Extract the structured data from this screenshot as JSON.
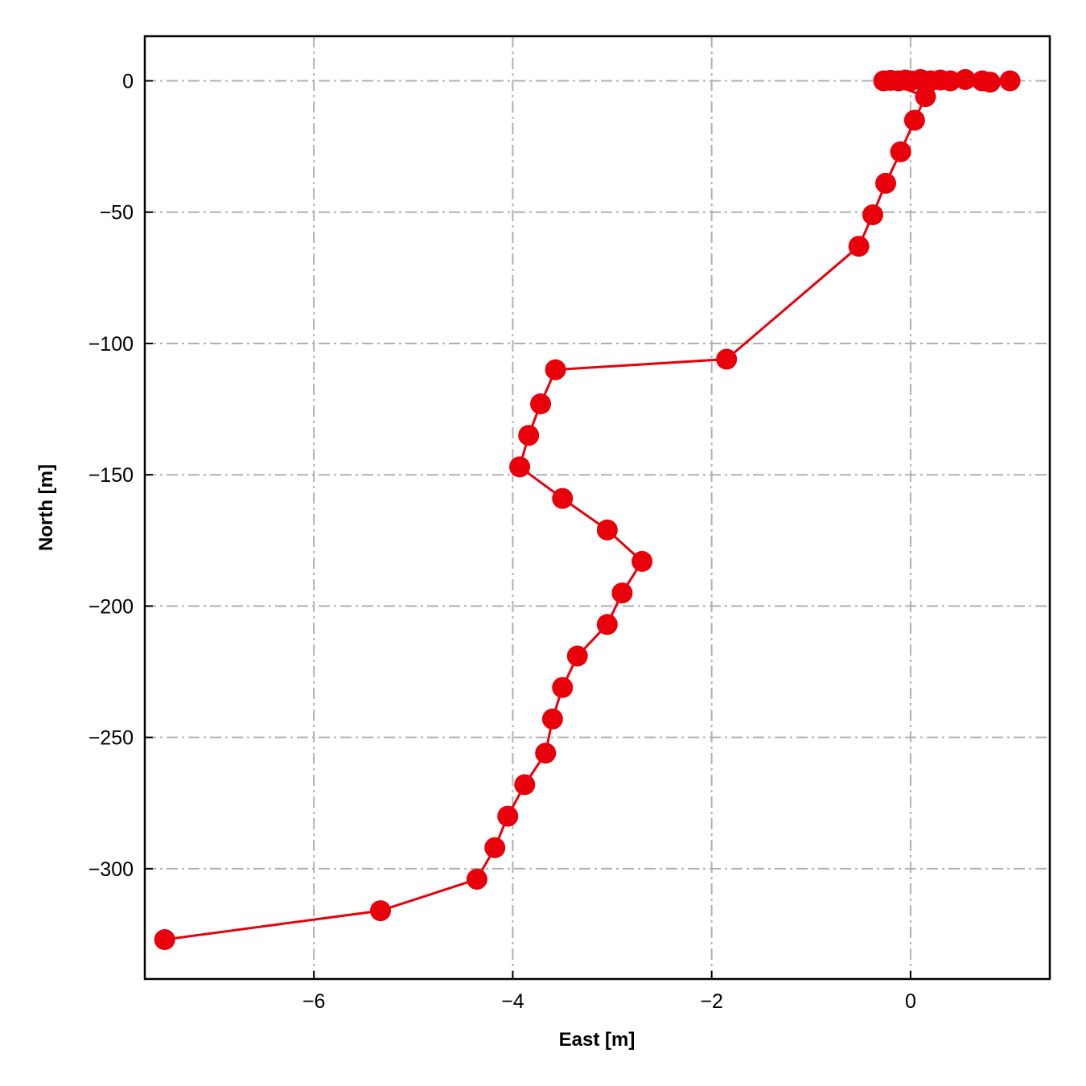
{
  "chart_data": {
    "type": "line",
    "xlabel": "East [m]",
    "ylabel": "North [m]",
    "xlim": [
      -7.7,
      1.4
    ],
    "ylim": [
      -342,
      17
    ],
    "xticks": [
      -6,
      -4,
      -2,
      0
    ],
    "yticks": [
      0,
      -50,
      -100,
      -150,
      -200,
      -250,
      -300
    ],
    "xtick_labels": [
      "−6",
      "−4",
      "−2",
      "0"
    ],
    "ytick_labels": [
      "0",
      "−50",
      "−100",
      "−150",
      "−200",
      "−250",
      "−300"
    ],
    "grid": true,
    "series": [
      {
        "color": "#e8000b",
        "marker": "circle",
        "points": [
          {
            "x": 1.0,
            "y": 0
          },
          {
            "x": 0.8,
            "y": -0.5
          },
          {
            "x": 0.72,
            "y": 0
          },
          {
            "x": 0.55,
            "y": 0.5
          },
          {
            "x": 0.4,
            "y": 0
          },
          {
            "x": 0.3,
            "y": 0.3
          },
          {
            "x": 0.2,
            "y": 0
          },
          {
            "x": 0.1,
            "y": 0.5
          },
          {
            "x": 0.0,
            "y": 0
          },
          {
            "x": -0.05,
            "y": 0.3
          },
          {
            "x": -0.12,
            "y": 0
          },
          {
            "x": -0.2,
            "y": 0.2
          },
          {
            "x": -0.27,
            "y": 0
          },
          {
            "x": 0.15,
            "y": -6
          },
          {
            "x": 0.04,
            "y": -15
          },
          {
            "x": -0.1,
            "y": -27
          },
          {
            "x": -0.25,
            "y": -39
          },
          {
            "x": -0.38,
            "y": -51
          },
          {
            "x": -0.52,
            "y": -63
          },
          {
            "x": -1.85,
            "y": -106
          },
          {
            "x": -3.57,
            "y": -110
          },
          {
            "x": -3.72,
            "y": -123
          },
          {
            "x": -3.84,
            "y": -135
          },
          {
            "x": -3.93,
            "y": -147
          },
          {
            "x": -3.5,
            "y": -159
          },
          {
            "x": -3.05,
            "y": -171
          },
          {
            "x": -2.7,
            "y": -183
          },
          {
            "x": -2.9,
            "y": -195
          },
          {
            "x": -3.05,
            "y": -207
          },
          {
            "x": -3.35,
            "y": -219
          },
          {
            "x": -3.5,
            "y": -231
          },
          {
            "x": -3.6,
            "y": -243
          },
          {
            "x": -3.67,
            "y": -256
          },
          {
            "x": -3.88,
            "y": -268
          },
          {
            "x": -4.05,
            "y": -280
          },
          {
            "x": -4.18,
            "y": -292
          },
          {
            "x": -4.36,
            "y": -304
          },
          {
            "x": -5.33,
            "y": -316
          },
          {
            "x": -7.5,
            "y": -327
          }
        ]
      }
    ]
  }
}
